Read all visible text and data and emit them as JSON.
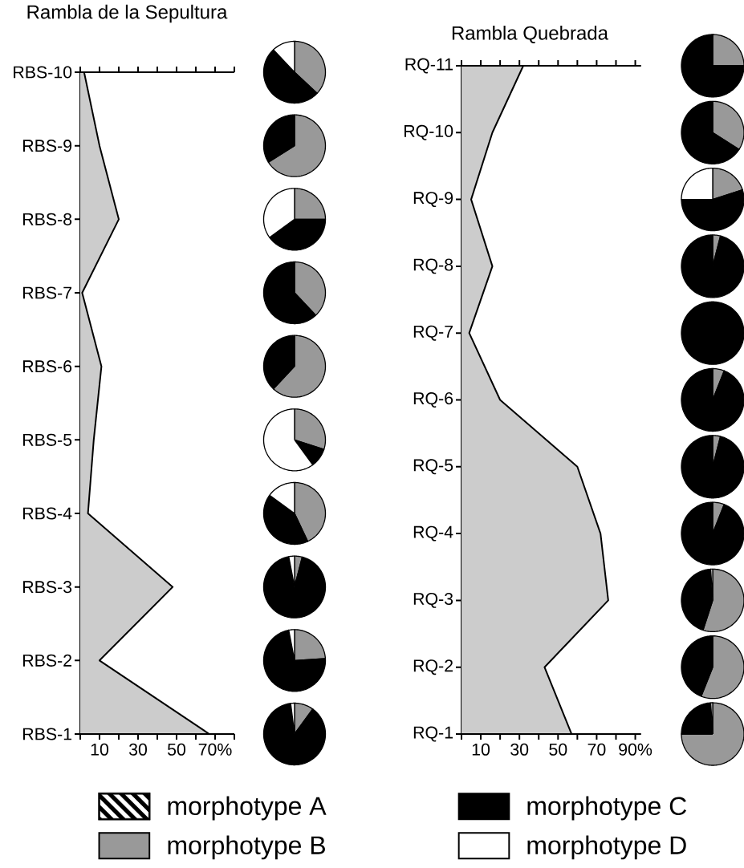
{
  "chart_data": [
    {
      "type": "area",
      "title": "Rambla de la Sepultura",
      "orientation": "horizontal",
      "categories": [
        "RBS-10",
        "RBS-9",
        "RBS-8",
        "RBS-7",
        "RBS-6",
        "RBS-5",
        "RBS-4",
        "RBS-3",
        "RBS-2",
        "RBS-1"
      ],
      "values": [
        2,
        10,
        20,
        1,
        11,
        7,
        4,
        48,
        10,
        67
      ],
      "color": "#cccccc",
      "xlim": [
        0,
        80
      ],
      "xticks": [
        {
          "value": 0,
          "label": null
        },
        10,
        {
          "value": 20,
          "label": null
        },
        30,
        {
          "value": 40,
          "label": null
        },
        50,
        {
          "value": 60,
          "label": null
        },
        {
          "value": 70,
          "label": "70%"
        },
        {
          "value": 80,
          "label": null
        }
      ]
    },
    {
      "type": "area",
      "title": "Rambla Quebrada",
      "orientation": "horizontal",
      "categories": [
        "RQ-11",
        "RQ-10",
        "RQ-9",
        "RQ-8",
        "RQ-7",
        "RQ-6",
        "RQ-5",
        "RQ-4",
        "RQ-3",
        "RQ-2",
        "RQ-1"
      ],
      "values": [
        32,
        16,
        5,
        16,
        4,
        20,
        60,
        72,
        76,
        43,
        57
      ],
      "color": "#cccccc",
      "xlim": [
        0,
        93
      ],
      "xticks": [
        {
          "value": 0,
          "label": null
        },
        10,
        {
          "value": 20,
          "label": null
        },
        30,
        {
          "value": 40,
          "label": null
        },
        50,
        {
          "value": 60,
          "label": null
        },
        70,
        {
          "value": 80,
          "label": null
        },
        {
          "value": 90,
          "label": "90%"
        }
      ]
    },
    {
      "type": "pie",
      "categories": [
        "morphotype A",
        "morphotype B",
        "morphotype C",
        "morphotype D"
      ],
      "colors": [
        "#000000",
        "#999999",
        "#000000",
        "#ffffff"
      ],
      "legend": "bottom",
      "series": [
        {
          "values": [
            0,
            37,
            51,
            12
          ]
        },
        {
          "values": [
            0,
            66,
            34,
            0
          ]
        },
        {
          "values": [
            0,
            25,
            40,
            35
          ]
        },
        {
          "values": [
            0,
            38,
            62,
            0
          ]
        },
        {
          "values": [
            0,
            62,
            38,
            0
          ]
        },
        {
          "values": [
            0,
            30,
            10,
            60
          ]
        },
        {
          "values": [
            0,
            43,
            42,
            15
          ]
        },
        {
          "values": [
            0,
            4,
            93,
            3
          ]
        },
        {
          "values": [
            0,
            24,
            73,
            3
          ]
        },
        {
          "values": [
            0,
            10,
            88,
            2
          ]
        },
        {
          "values": [
            0,
            25,
            75,
            0
          ]
        },
        {
          "values": [
            0,
            34,
            66,
            0
          ]
        },
        {
          "values": [
            0,
            20,
            55,
            25
          ]
        },
        {
          "values": [
            0,
            4,
            96,
            0
          ]
        },
        {
          "values": [
            0,
            0,
            100,
            0
          ]
        },
        {
          "values": [
            0,
            6,
            94,
            0
          ]
        },
        {
          "values": [
            0,
            4,
            96,
            0
          ]
        },
        {
          "values": [
            0,
            6,
            94,
            0
          ]
        },
        {
          "values": [
            0,
            55,
            44,
            1
          ]
        },
        {
          "values": [
            0,
            56,
            44,
            0
          ]
        },
        {
          "values": [
            0,
            75,
            24,
            1
          ]
        }
      ]
    }
  ]
}
